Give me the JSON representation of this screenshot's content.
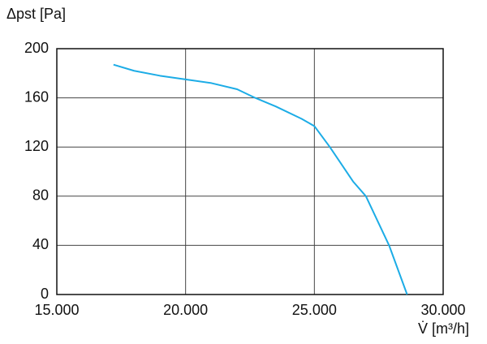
{
  "chart_data": {
    "type": "line",
    "y_label": "Δpst [Pa]",
    "x_label": "V̇ [m³/h]",
    "x": [
      17200,
      18000,
      19000,
      20000,
      21000,
      22000,
      22700,
      23500,
      24500,
      25000,
      25600,
      26500,
      27000,
      27900,
      28600
    ],
    "series": [
      {
        "color": "#1cace6",
        "values": [
          187,
          182,
          178,
          175,
          172,
          167,
          160,
          153,
          143,
          137,
          120,
          92,
          80,
          40,
          0
        ]
      }
    ],
    "xlim": [
      15000,
      30000
    ],
    "xticks": [
      {
        "value": 15000,
        "label": "15.000"
      },
      {
        "value": 20000,
        "label": "20.000"
      },
      {
        "value": 25000,
        "label": "25.000"
      },
      {
        "value": 30000,
        "label": "30.000"
      }
    ],
    "ylim": [
      0,
      200
    ],
    "yticks": [
      0,
      40,
      80,
      120,
      160,
      200
    ],
    "grid": true
  }
}
